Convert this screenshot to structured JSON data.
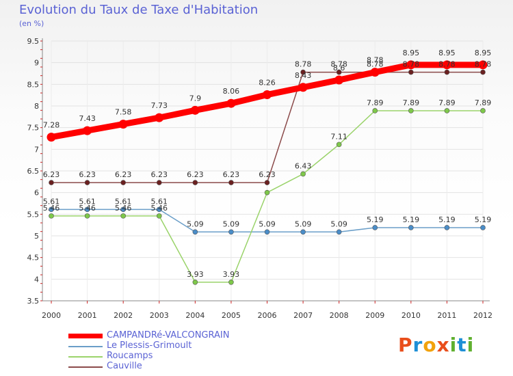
{
  "title": "Evolution du Taux de Taxe d'Habitation",
  "subtitle": "(en %)",
  "logo": {
    "text": "Proxiti",
    "letters": [
      "P",
      "r",
      "o",
      "x",
      "i",
      "t",
      "i"
    ],
    "colors": [
      "#e94e1b",
      "#1e8fd6",
      "#f2a20c",
      "#e94e1b",
      "#60b030",
      "#1e8fd6",
      "#60b030"
    ]
  },
  "chart_data": {
    "type": "line",
    "x": [
      "2000",
      "2001",
      "2002",
      "2003",
      "2004",
      "2005",
      "2006",
      "2007",
      "2008",
      "2009",
      "2010",
      "2011",
      "2012"
    ],
    "ylim": [
      3.5,
      9.5
    ],
    "yticks": [
      "3.5",
      "4",
      "4.5",
      "5",
      "5.5",
      "6",
      "6.5",
      "7",
      "7.5",
      "8",
      "8.5",
      "9",
      "9.5"
    ],
    "grid": true,
    "legend": "bottom-left",
    "series": [
      {
        "name": "CAMPANDRé-VALCONGRAIN",
        "color": "#ff0000",
        "marker": "#ff0000",
        "values": [
          7.28,
          7.43,
          7.58,
          7.73,
          7.9,
          8.06,
          8.26,
          8.43,
          8.6,
          8.78,
          8.95,
          8.95,
          8.95
        ],
        "labels": [
          "7.28",
          "7.43",
          "7.58",
          "7.73",
          "7.9",
          "8.06",
          "8.26",
          "8.43",
          "8.6",
          "8.78",
          "8.95",
          "8.95",
          "8.95"
        ]
      },
      {
        "name": "Le Plessis-Grimoult",
        "color": "#6a9ec8",
        "marker": "#4a8dc8",
        "values": [
          5.61,
          5.61,
          5.61,
          5.61,
          5.09,
          5.09,
          5.09,
          5.09,
          5.09,
          5.19,
          5.19,
          5.19,
          5.19
        ],
        "labels": [
          "5.61",
          "5.61",
          "5.61",
          "5.61",
          "5.09",
          "5.09",
          "5.09",
          "5.09",
          "5.09",
          "5.19",
          "5.19",
          "5.19",
          "5.19"
        ]
      },
      {
        "name": "Roucamps",
        "color": "#9ad36a",
        "marker": "#7ec84a",
        "values": [
          5.46,
          5.46,
          5.46,
          5.46,
          3.93,
          3.93,
          6.0,
          6.43,
          7.11,
          7.89,
          7.89,
          7.89,
          7.89
        ],
        "labels": [
          "5.46",
          "5.46",
          "5.46",
          "5.46",
          "3.93",
          "3.93",
          "",
          "6.43",
          "7.11",
          "7.89",
          "7.89",
          "7.89",
          "7.89"
        ]
      },
      {
        "name": "Cauville",
        "color": "#8b4a4a",
        "marker": "#6b2020",
        "values": [
          6.23,
          6.23,
          6.23,
          6.23,
          6.23,
          6.23,
          6.23,
          8.78,
          8.78,
          8.78,
          8.78,
          8.78,
          8.78
        ],
        "labels": [
          "6.23",
          "6.23",
          "6.23",
          "6.23",
          "6.23",
          "6.23",
          "6.23",
          "8.78",
          "8.78",
          "8.78",
          "8.78",
          "8.78",
          "8.78"
        ]
      }
    ]
  }
}
